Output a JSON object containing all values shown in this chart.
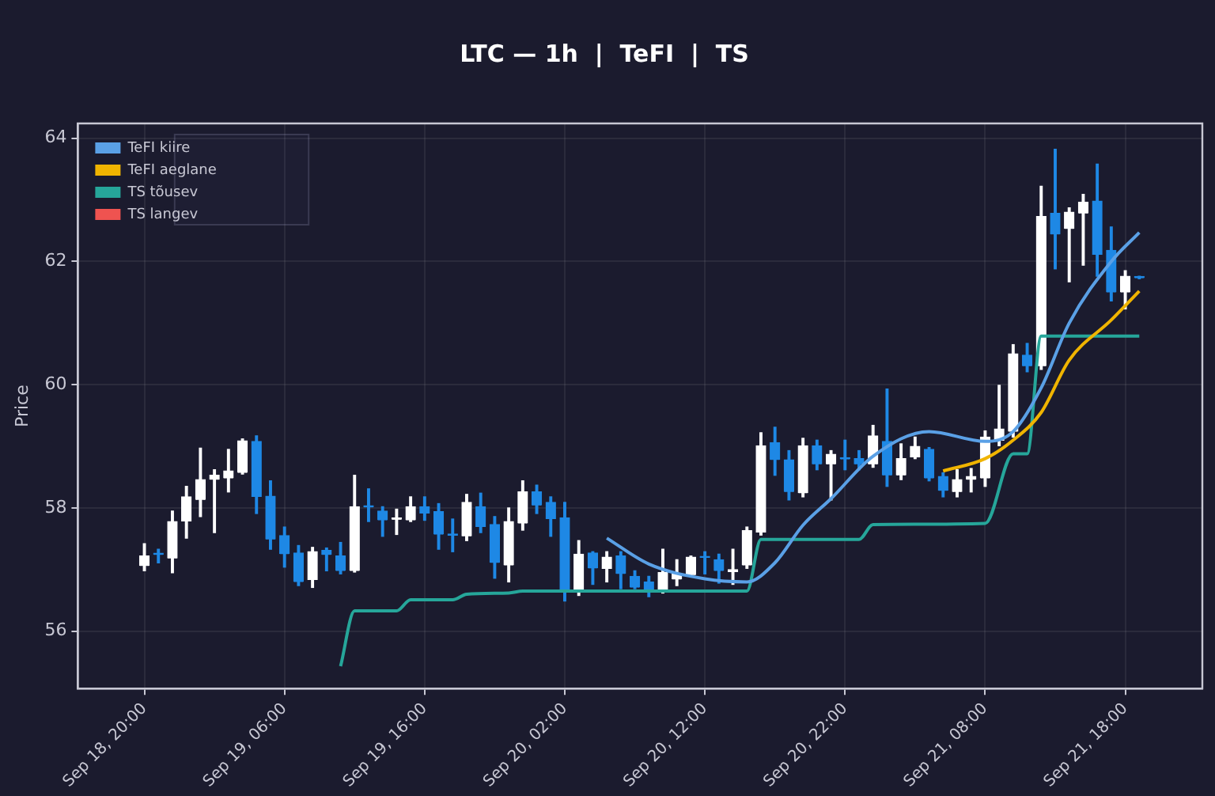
{
  "chart_data": {
    "type": "candlestick",
    "title": "LTC — 1h  |  TeFI  |  TS",
    "ylabel": "Price",
    "x": [
      "--09-18T20:00",
      "--09-18T21:00",
      "--09-18T22:00",
      "--09-18T23:00",
      "--09-19T00:00",
      "--09-19T01:00",
      "--09-19T02:00",
      "--09-19T03:00",
      "--09-19T04:00",
      "--09-19T05:00",
      "--09-19T06:00",
      "--09-19T07:00",
      "--09-19T08:00",
      "--09-19T09:00",
      "--09-19T10:00",
      "--09-19T11:00",
      "--09-19T12:00",
      "--09-19T13:00",
      "--09-19T14:00",
      "--09-19T15:00",
      "--09-19T16:00",
      "--09-19T17:00",
      "--09-19T18:00",
      "--09-19T19:00",
      "--09-19T20:00",
      "--09-19T21:00",
      "--09-19T22:00",
      "--09-19T23:00",
      "--09-20T00:00",
      "--09-20T01:00",
      "--09-20T02:00",
      "--09-20T03:00",
      "--09-20T04:00",
      "--09-20T05:00",
      "--09-20T06:00",
      "--09-20T07:00",
      "--09-20T08:00",
      "--09-20T09:00",
      "--09-20T10:00",
      "--09-20T11:00",
      "--09-20T12:00",
      "--09-20T13:00",
      "--09-20T14:00",
      "--09-20T15:00",
      "--09-20T16:00",
      "--09-20T17:00",
      "--09-20T18:00",
      "--09-20T19:00",
      "--09-20T20:00",
      "--09-20T21:00",
      "--09-20T22:00",
      "--09-20T23:00",
      "--09-21T00:00",
      "--09-21T01:00",
      "--09-21T02:00",
      "--09-21T03:00",
      "--09-21T04:00",
      "--09-21T05:00",
      "--09-21T06:00",
      "--09-21T07:00",
      "--09-21T08:00",
      "--09-21T09:00",
      "--09-21T10:00",
      "--09-21T11:00",
      "--09-21T12:00",
      "--09-21T13:00",
      "--09-21T14:00",
      "--09-21T15:00",
      "--09-21T16:00",
      "--09-21T17:00",
      "--09-21T18:00",
      "--09-21T19:00"
    ],
    "ohlc": [
      [
        57.06,
        57.42,
        56.98,
        57.22
      ],
      [
        57.26,
        57.33,
        57.11,
        57.24
      ],
      [
        57.18,
        57.95,
        56.95,
        57.78
      ],
      [
        57.78,
        58.35,
        57.51,
        58.18
      ],
      [
        58.13,
        58.97,
        57.86,
        58.46
      ],
      [
        58.46,
        58.62,
        57.6,
        58.53
      ],
      [
        58.48,
        58.95,
        58.26,
        58.6
      ],
      [
        58.57,
        59.12,
        58.55,
        59.09
      ],
      [
        59.08,
        59.17,
        57.91,
        58.18
      ],
      [
        58.19,
        58.44,
        57.33,
        57.49
      ],
      [
        57.55,
        57.69,
        57.04,
        57.25
      ],
      [
        57.27,
        57.39,
        56.74,
        56.8
      ],
      [
        56.83,
        57.36,
        56.71,
        57.29
      ],
      [
        57.31,
        57.35,
        56.98,
        57.24
      ],
      [
        57.22,
        57.44,
        56.93,
        56.98
      ],
      [
        56.98,
        58.53,
        56.96,
        58.02
      ],
      [
        58.03,
        58.31,
        57.78,
        58.01
      ],
      [
        57.95,
        58.02,
        57.54,
        57.8
      ],
      [
        57.81,
        57.98,
        57.57,
        57.83
      ],
      [
        57.8,
        58.18,
        57.78,
        58.02
      ],
      [
        58.02,
        58.18,
        57.8,
        57.91
      ],
      [
        57.94,
        58.07,
        57.33,
        57.57
      ],
      [
        57.57,
        57.82,
        57.29,
        57.55
      ],
      [
        57.54,
        58.22,
        57.47,
        58.09
      ],
      [
        58.02,
        58.24,
        57.6,
        57.69
      ],
      [
        57.73,
        57.86,
        56.86,
        57.11
      ],
      [
        57.07,
        58.0,
        56.8,
        57.78
      ],
      [
        57.75,
        58.44,
        57.64,
        58.26
      ],
      [
        58.26,
        58.37,
        57.91,
        58.04
      ],
      [
        58.09,
        58.18,
        57.54,
        57.82
      ],
      [
        57.84,
        58.09,
        56.49,
        56.67
      ],
      [
        56.67,
        57.47,
        56.58,
        57.25
      ],
      [
        57.27,
        57.29,
        56.76,
        57.02
      ],
      [
        57.01,
        57.29,
        56.8,
        57.2
      ],
      [
        57.22,
        57.29,
        56.69,
        56.93
      ],
      [
        56.89,
        56.98,
        56.69,
        56.71
      ],
      [
        56.8,
        56.89,
        56.56,
        56.67
      ],
      [
        56.67,
        57.33,
        56.62,
        56.95
      ],
      [
        56.84,
        57.16,
        56.74,
        56.93
      ],
      [
        56.91,
        57.22,
        56.89,
        57.2
      ],
      [
        57.21,
        57.29,
        56.93,
        57.19
      ],
      [
        57.16,
        57.25,
        56.78,
        56.98
      ],
      [
        56.96,
        57.33,
        56.76,
        57.0
      ],
      [
        57.07,
        57.69,
        57.02,
        57.63
      ],
      [
        57.6,
        59.22,
        57.56,
        59.01
      ],
      [
        59.06,
        59.31,
        58.53,
        58.78
      ],
      [
        58.78,
        58.93,
        58.13,
        58.26
      ],
      [
        58.24,
        59.13,
        58.18,
        59.01
      ],
      [
        59.01,
        59.1,
        58.62,
        58.71
      ],
      [
        58.71,
        58.93,
        58.13,
        58.87
      ],
      [
        58.81,
        59.1,
        58.62,
        58.79
      ],
      [
        58.8,
        58.93,
        58.62,
        58.71
      ],
      [
        58.71,
        59.34,
        58.66,
        59.17
      ],
      [
        59.08,
        59.93,
        58.35,
        58.53
      ],
      [
        58.53,
        59.04,
        58.46,
        58.8
      ],
      [
        58.82,
        59.15,
        58.8,
        59.0
      ],
      [
        58.95,
        58.98,
        58.44,
        58.48
      ],
      [
        58.51,
        58.57,
        58.18,
        58.28
      ],
      [
        58.26,
        58.62,
        58.18,
        58.46
      ],
      [
        58.46,
        58.64,
        58.26,
        58.51
      ],
      [
        58.48,
        59.25,
        58.35,
        59.15
      ],
      [
        59.09,
        59.99,
        59.01,
        59.28
      ],
      [
        59.24,
        60.65,
        59.15,
        60.5
      ],
      [
        60.48,
        60.67,
        60.21,
        60.3
      ],
      [
        60.3,
        63.22,
        60.25,
        62.73
      ],
      [
        62.78,
        63.82,
        61.88,
        62.44
      ],
      [
        62.53,
        62.87,
        61.67,
        62.8
      ],
      [
        62.78,
        63.09,
        61.94,
        62.96
      ],
      [
        62.98,
        63.58,
        61.76,
        62.11
      ],
      [
        62.18,
        62.56,
        61.36,
        61.5
      ],
      [
        61.5,
        61.85,
        61.23,
        61.76
      ],
      [
        61.75,
        61.76,
        61.72,
        61.73
      ]
    ],
    "colors": [
      "#ffffff",
      "#1e88e5",
      "#ffffff",
      "#ffffff",
      "#ffffff",
      "#ffffff",
      "#ffffff",
      "#ffffff",
      "#1e88e5",
      "#1e88e5",
      "#1e88e5",
      "#1e88e5",
      "#ffffff",
      "#1e88e5",
      "#1e88e5",
      "#ffffff",
      "#1e88e5",
      "#1e88e5",
      "#ffffff",
      "#ffffff",
      "#1e88e5",
      "#1e88e5",
      "#1e88e5",
      "#ffffff",
      "#1e88e5",
      "#1e88e5",
      "#ffffff",
      "#ffffff",
      "#1e88e5",
      "#1e88e5",
      "#1e88e5",
      "#ffffff",
      "#1e88e5",
      "#ffffff",
      "#1e88e5",
      "#1e88e5",
      "#1e88e5",
      "#ffffff",
      "#ffffff",
      "#ffffff",
      "#1e88e5",
      "#1e88e5",
      "#ffffff",
      "#ffffff",
      "#ffffff",
      "#1e88e5",
      "#1e88e5",
      "#ffffff",
      "#1e88e5",
      "#ffffff",
      "#1e88e5",
      "#1e88e5",
      "#ffffff",
      "#1e88e5",
      "#ffffff",
      "#ffffff",
      "#1e88e5",
      "#1e88e5",
      "#ffffff",
      "#ffffff",
      "#ffffff",
      "#ffffff",
      "#ffffff",
      "#1e88e5",
      "#ffffff",
      "#1e88e5",
      "#ffffff",
      "#ffffff",
      "#1e88e5",
      "#1e88e5",
      "#ffffff",
      "#1e88e5"
    ],
    "series": [
      {
        "name": "TeFI kiire",
        "type": "line",
        "color": "#5aa0e6",
        "x": [
          "--09-20T05:00",
          "--09-20T08:00",
          "--09-20T12:00",
          "--09-20T15:00",
          "--09-20T17:00",
          "--09-20T19:00",
          "--09-20T21:00",
          "--09-21T00:00",
          "--09-21T04:00",
          "--09-21T08:00",
          "--09-21T10:00",
          "--09-21T12:00",
          "--09-21T14:00",
          "--09-21T17:00",
          "--09-21T19:00"
        ],
        "values": [
          57.51,
          57.09,
          56.85,
          56.8,
          57.11,
          57.72,
          58.15,
          58.84,
          59.24,
          59.08,
          59.24,
          59.95,
          61.0,
          62.0,
          62.47
        ]
      },
      {
        "name": "TeFI aeglane",
        "type": "line",
        "color": "#f0b400",
        "x": [
          "--09-21T05:00",
          "--09-21T08:00",
          "--09-21T10:00",
          "--09-21T12:00",
          "--09-21T14:00",
          "--09-21T17:00",
          "--09-21T19:00"
        ],
        "values": [
          58.6,
          58.8,
          59.1,
          59.55,
          60.4,
          61.05,
          61.52
        ]
      },
      {
        "name": "TS tõusev",
        "type": "line",
        "color": "#26a69a",
        "x": [
          "--09-19T10:00",
          "--09-19T11:00",
          "--09-19T14:00",
          "--09-19T15:00",
          "--09-19T18:00",
          "--09-19T19:00",
          "--09-19T22:00",
          "--09-19T23:00",
          "--09-20T15:00",
          "--09-20T16:00",
          "--09-20T23:00",
          "--09-21T00:00",
          "--09-21T08:00",
          "--09-21T10:00",
          "--09-21T11:00",
          "--09-21T12:00",
          "--09-21T19:00"
        ],
        "values": [
          55.43,
          56.33,
          56.33,
          56.51,
          56.51,
          56.6,
          56.62,
          56.65,
          56.65,
          57.49,
          57.49,
          57.73,
          57.75,
          58.88,
          58.88,
          60.79,
          60.79
        ]
      },
      {
        "name": "TS langev",
        "type": "line",
        "color": "#ef5350",
        "values": [
          null,
          null,
          null,
          null,
          null,
          null,
          null,
          null,
          null,
          null,
          null,
          null,
          null,
          null,
          null,
          null,
          null,
          null,
          null,
          null,
          null,
          null,
          null,
          null,
          null,
          null,
          null,
          null,
          null,
          null,
          null,
          null,
          null,
          null,
          null,
          null,
          null,
          null,
          null,
          null,
          null,
          null,
          null,
          null,
          null,
          null,
          null,
          null,
          null,
          null,
          null,
          null,
          null,
          null,
          null,
          null,
          null,
          null,
          null,
          null,
          null,
          null,
          null,
          null,
          null,
          null,
          null,
          null,
          null,
          null,
          null,
          null
        ]
      }
    ],
    "xlim": [
      "--09-18T15:15",
      "--09-21T23:30"
    ],
    "xticks": [
      {
        "value": "--09-18T20:00",
        "label": "Sep 18, 20:00"
      },
      {
        "value": "--09-19T06:00",
        "label": "Sep 19, 06:00"
      },
      {
        "value": "--09-19T16:00",
        "label": "Sep 19, 16:00"
      },
      {
        "value": "--09-20T02:00",
        "label": "Sep 20, 02:00"
      },
      {
        "value": "--09-20T12:00",
        "label": "Sep 20, 12:00"
      },
      {
        "value": "--09-20T22:00",
        "label": "Sep 20, 22:00"
      },
      {
        "value": "--09-21T08:00",
        "label": "Sep 21, 08:00"
      },
      {
        "value": "--09-21T18:00",
        "label": "Sep 21, 18:00"
      }
    ],
    "ylim": [
      55.07,
      64.24
    ],
    "yticks": [
      56,
      58,
      60,
      62,
      64
    ],
    "grid": true,
    "legend": "top left"
  }
}
